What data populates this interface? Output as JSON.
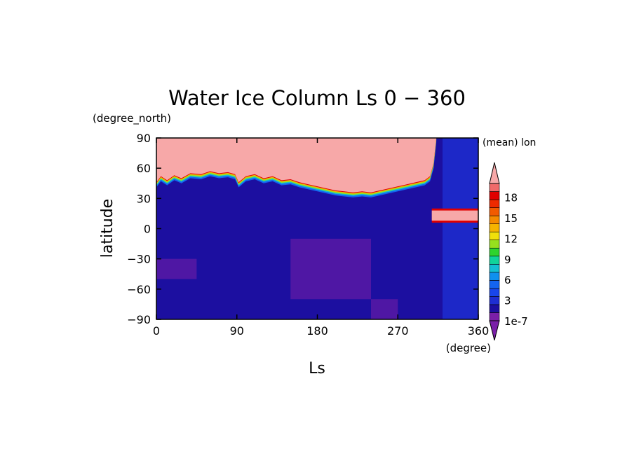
{
  "chart_data": {
    "type": "heatmap",
    "title": "Water Ice Column Ls 0 − 360",
    "xlabel": "Ls",
    "ylabel": "latitude",
    "x_units": "(degree)",
    "y_units": "(degree_north)",
    "colorbar_title": "(mean) lon",
    "xlim": [
      0,
      360
    ],
    "ylim": [
      -90,
      90
    ],
    "x_ticks": [
      "0",
      "90",
      "180",
      "270",
      "360"
    ],
    "y_ticks": [
      "90",
      "60",
      "30",
      "0",
      "−30",
      "−60",
      "−90"
    ],
    "colorbar_labels": [
      "18",
      "15",
      "12",
      "9",
      "6",
      "3",
      "1e-7"
    ],
    "colorbar_label_values": [
      18,
      15,
      12,
      9,
      6,
      3,
      0
    ],
    "colorbar_colors": [
      "#7a1fa8",
      "#1c0fa0",
      "#1e2ed2",
      "#1846ec",
      "#1464f0",
      "#0f90ee",
      "#13bfd2",
      "#10d49a",
      "#2ed42e",
      "#96e01e",
      "#f0e00a",
      "#f5b400",
      "#f58a00",
      "#f25a00",
      "#ee2a00",
      "#e00000",
      "#f06a6a"
    ],
    "over_color": "#f7a8a8",
    "under_color": "#7a1fa8",
    "background_color": "#1c0fa0",
    "regions": {
      "north_cap_edge": [
        [
          0,
          46
        ],
        [
          5,
          52
        ],
        [
          12,
          48
        ],
        [
          20,
          53
        ],
        [
          28,
          50
        ],
        [
          38,
          55
        ],
        [
          50,
          54
        ],
        [
          60,
          57
        ],
        [
          70,
          55
        ],
        [
          80,
          56
        ],
        [
          88,
          54
        ],
        [
          92,
          46
        ],
        [
          100,
          52
        ],
        [
          110,
          54
        ],
        [
          120,
          50
        ],
        [
          130,
          52
        ],
        [
          140,
          48
        ],
        [
          150,
          49
        ],
        [
          160,
          46
        ],
        [
          170,
          44
        ],
        [
          180,
          42
        ],
        [
          190,
          40
        ],
        [
          200,
          38
        ],
        [
          210,
          37
        ],
        [
          220,
          36
        ],
        [
          230,
          37
        ],
        [
          240,
          36
        ],
        [
          250,
          38
        ],
        [
          260,
          40
        ],
        [
          270,
          42
        ],
        [
          280,
          44
        ],
        [
          290,
          46
        ],
        [
          300,
          48
        ],
        [
          306,
          52
        ],
        [
          310,
          65
        ],
        [
          313,
          90
        ]
      ],
      "tropical_band": {
        "x": [
          308,
          360
        ],
        "y": [
          8,
          18
        ],
        "peak": [
          [
            320,
            14
          ],
          [
            340,
            15
          ],
          [
            355,
            5
          ]
        ]
      },
      "south_low_patches": [
        {
          "x": [
            0,
            45
          ],
          "y": [
            -50,
            -30
          ]
        },
        {
          "x": [
            150,
            240
          ],
          "y": [
            -70,
            -10
          ]
        },
        {
          "x": [
            240,
            270
          ],
          "y": [
            -90,
            -70
          ]
        }
      ],
      "east_edge_blue": {
        "x": [
          320,
          360
        ],
        "y": [
          -90,
          90
        ]
      }
    }
  }
}
